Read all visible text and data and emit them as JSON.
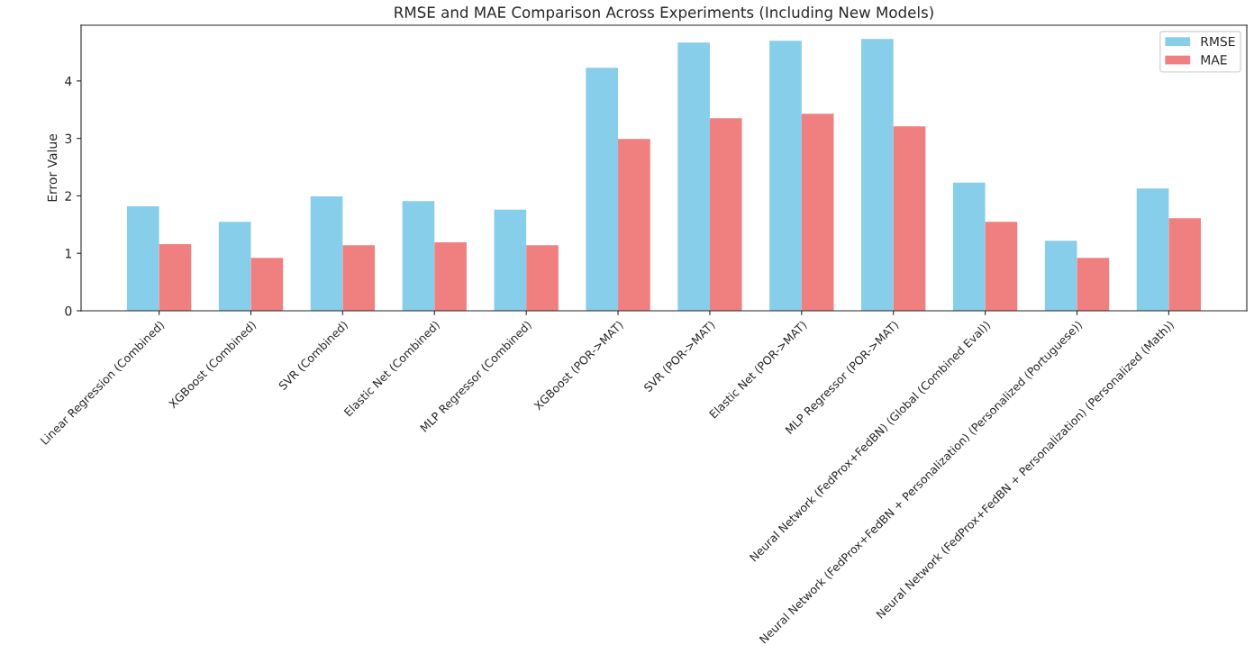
{
  "chart_data": {
    "type": "bar",
    "title": "RMSE and MAE Comparison Across Experiments (Including New Models)",
    "ylabel": "Error Value",
    "categories": [
      "Linear Regression (Combined)",
      "XGBoost (Combined)",
      "SVR (Combined)",
      "Elastic Net (Combined)",
      "MLP Regressor (Combined)",
      "XGBoost (POR->MAT)",
      "SVR (POR->MAT)",
      "Elastic Net (POR->MAT)",
      "MLP Regressor (POR->MAT)",
      "Neural Network (FedProx+FedBN) (Global (Combined Eval))",
      "Neural Network (FedProx+FedBN + Personalization) (Personalized (Portuguese))",
      "Neural Network (FedProx+FedBN + Personalization) (Personalized (Math))"
    ],
    "series": [
      {
        "name": "RMSE",
        "color": "#87ceeb",
        "values": [
          1.82,
          1.55,
          1.99,
          1.91,
          1.76,
          4.23,
          4.67,
          4.7,
          4.73,
          2.23,
          1.22,
          2.13
        ]
      },
      {
        "name": "MAE",
        "color": "#f08080",
        "values": [
          1.16,
          0.92,
          1.14,
          1.19,
          1.14,
          2.99,
          3.35,
          3.43,
          3.21,
          1.55,
          0.92,
          1.61
        ]
      }
    ],
    "ylim": [
      0,
      4.97
    ],
    "yticks": [
      0,
      1,
      2,
      3,
      4
    ],
    "grid": false,
    "legend": "top right"
  }
}
